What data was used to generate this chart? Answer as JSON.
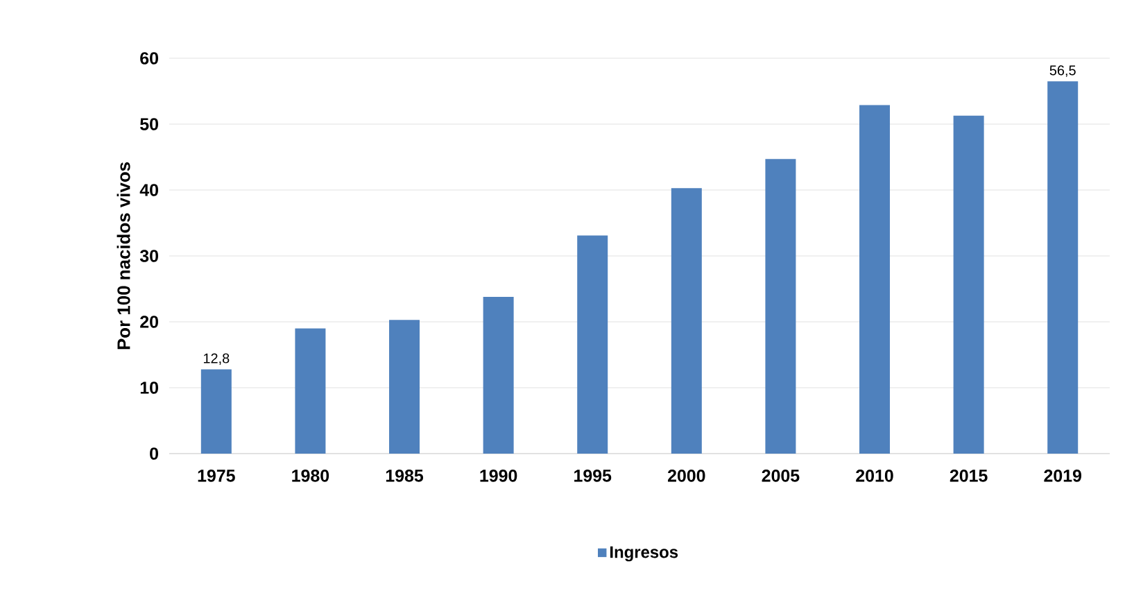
{
  "chart_data": {
    "type": "bar",
    "ylabel": "Por 100 nacidos vivos",
    "categories": [
      "1975",
      "1980",
      "1985",
      "1990",
      "1995",
      "2000",
      "2005",
      "2010",
      "2015",
      "2019"
    ],
    "series": [
      {
        "name": "Ingresos",
        "color": "#4f81bd",
        "values": [
          12.8,
          19.0,
          20.3,
          23.8,
          33.1,
          40.3,
          44.7,
          52.9,
          51.3,
          56.5
        ],
        "value_labels": [
          "12,8",
          null,
          null,
          null,
          null,
          null,
          null,
          null,
          null,
          "56,5"
        ]
      }
    ],
    "ylim": [
      0,
      60
    ],
    "yticks": [
      0,
      10,
      20,
      30,
      40,
      50,
      60
    ],
    "grid": "y",
    "legend": "bottom"
  }
}
